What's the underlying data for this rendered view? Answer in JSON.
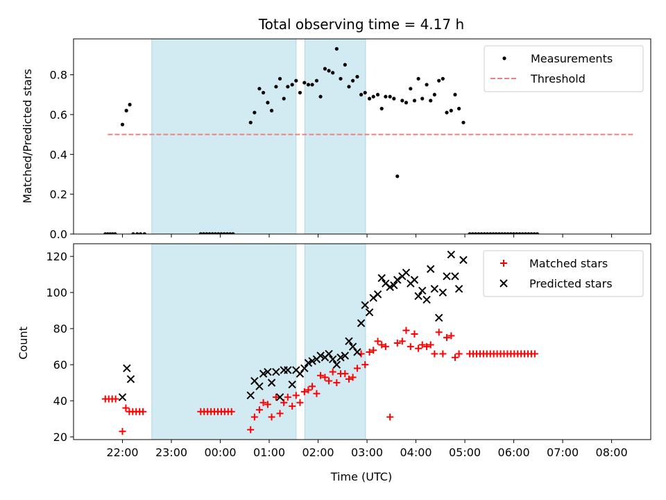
{
  "figure": {
    "title": "Total observing time = 4.17 h",
    "xlabel": "Time (UTC)",
    "x_ticks": [
      "22:00",
      "23:00",
      "00:00",
      "01:00",
      "02:00",
      "03:00",
      "04:00",
      "05:00",
      "06:00",
      "07:00",
      "08:00"
    ],
    "colors": {
      "span": "#add8e6",
      "threshold": "#f08080",
      "measurements": "#000000",
      "matched": "#ff0000",
      "predicted": "#000000"
    }
  },
  "chart_data": [
    {
      "type": "scatter",
      "ylabel": "Matched/Predicted stars",
      "xlim": [
        -1.0,
        10.8
      ],
      "ylim": [
        0,
        0.98
      ],
      "y_ticks": [
        0.0,
        0.2,
        0.4,
        0.6,
        0.8
      ],
      "legend_position": "top-right",
      "shaded_spans": [
        [
          0.6,
          3.55
        ],
        [
          3.73,
          4.97
        ]
      ],
      "threshold": {
        "name": "Threshold",
        "y": 0.5,
        "x_range": [
          -0.3,
          10.48
        ]
      },
      "series": [
        {
          "name": "Measurements",
          "points": [
            [
              -0.35,
              0
            ],
            [
              -0.3,
              0
            ],
            [
              -0.25,
              0
            ],
            [
              -0.2,
              0
            ],
            [
              -0.15,
              0
            ],
            [
              0.0,
              0.55
            ],
            [
              0.08,
              0.62
            ],
            [
              0.15,
              0.65
            ],
            [
              0.22,
              0
            ],
            [
              0.3,
              0
            ],
            [
              0.37,
              0
            ],
            [
              0.45,
              0
            ],
            [
              1.6,
              0
            ],
            [
              1.66,
              0
            ],
            [
              1.72,
              0
            ],
            [
              1.78,
              0
            ],
            [
              1.84,
              0
            ],
            [
              1.9,
              0
            ],
            [
              1.96,
              0
            ],
            [
              2.02,
              0
            ],
            [
              2.08,
              0
            ],
            [
              2.14,
              0
            ],
            [
              2.2,
              0
            ],
            [
              2.26,
              0
            ],
            [
              2.62,
              0.56
            ],
            [
              2.7,
              0.61
            ],
            [
              2.8,
              0.73
            ],
            [
              2.88,
              0.71
            ],
            [
              2.97,
              0.66
            ],
            [
              3.05,
              0.62
            ],
            [
              3.14,
              0.74
            ],
            [
              3.22,
              0.78
            ],
            [
              3.3,
              0.68
            ],
            [
              3.38,
              0.74
            ],
            [
              3.47,
              0.75
            ],
            [
              3.55,
              0.77
            ],
            [
              3.63,
              0.71
            ],
            [
              3.72,
              0.76
            ],
            [
              3.8,
              0.75
            ],
            [
              3.88,
              0.75
            ],
            [
              3.97,
              0.77
            ],
            [
              4.05,
              0.69
            ],
            [
              4.14,
              0.83
            ],
            [
              4.22,
              0.82
            ],
            [
              4.3,
              0.81
            ],
            [
              4.38,
              0.93
            ],
            [
              4.46,
              0.78
            ],
            [
              4.55,
              0.85
            ],
            [
              4.63,
              0.74
            ],
            [
              4.71,
              0.77
            ],
            [
              4.8,
              0.79
            ],
            [
              4.88,
              0.7
            ],
            [
              4.96,
              0.71
            ],
            [
              5.05,
              0.68
            ],
            [
              5.13,
              0.69
            ],
            [
              5.22,
              0.7
            ],
            [
              5.3,
              0.63
            ],
            [
              5.38,
              0.69
            ],
            [
              5.47,
              0.69
            ],
            [
              5.55,
              0.68
            ],
            [
              5.62,
              0.29
            ],
            [
              5.72,
              0.67
            ],
            [
              5.8,
              0.66
            ],
            [
              5.89,
              0.73
            ],
            [
              5.97,
              0.67
            ],
            [
              6.05,
              0.78
            ],
            [
              6.13,
              0.68
            ],
            [
              6.22,
              0.75
            ],
            [
              6.3,
              0.67
            ],
            [
              6.38,
              0.7
            ],
            [
              6.47,
              0.77
            ],
            [
              6.55,
              0.78
            ],
            [
              6.63,
              0.61
            ],
            [
              6.72,
              0.62
            ],
            [
              6.8,
              0.7
            ],
            [
              6.88,
              0.63
            ],
            [
              6.97,
              0.56
            ],
            [
              7.1,
              0
            ],
            [
              7.16,
              0
            ],
            [
              7.22,
              0
            ],
            [
              7.28,
              0
            ],
            [
              7.34,
              0
            ],
            [
              7.4,
              0
            ],
            [
              7.46,
              0
            ],
            [
              7.52,
              0
            ],
            [
              7.58,
              0
            ],
            [
              7.64,
              0
            ],
            [
              7.7,
              0
            ],
            [
              7.76,
              0
            ],
            [
              7.82,
              0
            ],
            [
              7.88,
              0
            ],
            [
              7.94,
              0
            ],
            [
              8.0,
              0
            ],
            [
              8.06,
              0
            ],
            [
              8.12,
              0
            ],
            [
              8.18,
              0
            ],
            [
              8.24,
              0
            ],
            [
              8.3,
              0
            ],
            [
              8.36,
              0
            ],
            [
              8.42,
              0
            ],
            [
              8.48,
              0
            ]
          ]
        }
      ]
    },
    {
      "type": "scatter",
      "ylabel": "Count",
      "xlim": [
        -1.0,
        10.8
      ],
      "ylim": [
        18.5,
        127
      ],
      "y_ticks": [
        20,
        40,
        60,
        80,
        100,
        120
      ],
      "legend_position": "top-right",
      "shaded_spans": [
        [
          0.6,
          3.55
        ],
        [
          3.73,
          4.97
        ]
      ],
      "series": [
        {
          "name": "Matched stars",
          "marker": "plus",
          "points": [
            [
              -0.35,
              41
            ],
            [
              -0.28,
              41
            ],
            [
              -0.21,
              41
            ],
            [
              -0.14,
              41
            ],
            [
              0.0,
              23
            ],
            [
              0.07,
              36
            ],
            [
              0.14,
              34
            ],
            [
              0.21,
              34
            ],
            [
              0.28,
              34
            ],
            [
              0.35,
              34
            ],
            [
              0.42,
              34
            ],
            [
              1.6,
              34
            ],
            [
              1.67,
              34
            ],
            [
              1.74,
              34
            ],
            [
              1.81,
              34
            ],
            [
              1.88,
              34
            ],
            [
              1.95,
              34
            ],
            [
              2.02,
              34
            ],
            [
              2.09,
              34
            ],
            [
              2.16,
              34
            ],
            [
              2.23,
              34
            ],
            [
              2.62,
              24
            ],
            [
              2.7,
              31
            ],
            [
              2.8,
              35
            ],
            [
              2.88,
              39
            ],
            [
              2.97,
              38
            ],
            [
              3.05,
              31
            ],
            [
              3.14,
              42
            ],
            [
              3.22,
              33
            ],
            [
              3.3,
              39
            ],
            [
              3.38,
              42
            ],
            [
              3.47,
              37
            ],
            [
              3.55,
              43
            ],
            [
              3.63,
              39
            ],
            [
              3.72,
              45
            ],
            [
              3.8,
              46
            ],
            [
              3.88,
              48
            ],
            [
              3.97,
              44
            ],
            [
              4.05,
              54
            ],
            [
              4.14,
              53
            ],
            [
              4.22,
              51
            ],
            [
              4.3,
              56
            ],
            [
              4.38,
              50
            ],
            [
              4.46,
              55
            ],
            [
              4.55,
              55
            ],
            [
              4.63,
              52
            ],
            [
              4.71,
              53
            ],
            [
              4.8,
              58
            ],
            [
              4.88,
              66
            ],
            [
              4.96,
              60
            ],
            [
              5.05,
              67
            ],
            [
              5.13,
              68
            ],
            [
              5.22,
              73
            ],
            [
              5.3,
              71
            ],
            [
              5.38,
              70
            ],
            [
              5.47,
              31
            ],
            [
              5.62,
              72
            ],
            [
              5.72,
              73
            ],
            [
              5.8,
              79
            ],
            [
              5.89,
              70
            ],
            [
              5.97,
              77
            ],
            [
              6.05,
              69
            ],
            [
              6.13,
              71
            ],
            [
              6.22,
              70
            ],
            [
              6.3,
              71
            ],
            [
              6.38,
              66
            ],
            [
              6.47,
              78
            ],
            [
              6.55,
              66
            ],
            [
              6.63,
              75
            ],
            [
              6.72,
              76
            ],
            [
              6.8,
              64
            ],
            [
              6.88,
              66
            ],
            [
              7.1,
              66
            ],
            [
              7.17,
              66
            ],
            [
              7.24,
              66
            ],
            [
              7.31,
              66
            ],
            [
              7.38,
              66
            ],
            [
              7.45,
              66
            ],
            [
              7.52,
              66
            ],
            [
              7.59,
              66
            ],
            [
              7.66,
              66
            ],
            [
              7.73,
              66
            ],
            [
              7.8,
              66
            ],
            [
              7.87,
              66
            ],
            [
              7.94,
              66
            ],
            [
              8.01,
              66
            ],
            [
              8.08,
              66
            ],
            [
              8.15,
              66
            ],
            [
              8.22,
              66
            ],
            [
              8.29,
              66
            ],
            [
              8.36,
              66
            ],
            [
              8.43,
              66
            ]
          ]
        },
        {
          "name": "Predicted stars",
          "marker": "x",
          "points": [
            [
              0.0,
              42
            ],
            [
              0.09,
              58
            ],
            [
              0.17,
              52
            ],
            [
              2.62,
              43
            ],
            [
              2.7,
              51
            ],
            [
              2.8,
              48
            ],
            [
              2.88,
              55
            ],
            [
              2.97,
              56
            ],
            [
              3.05,
              50
            ],
            [
              3.14,
              56
            ],
            [
              3.22,
              42
            ],
            [
              3.3,
              57
            ],
            [
              3.38,
              57
            ],
            [
              3.47,
              49
            ],
            [
              3.55,
              57
            ],
            [
              3.63,
              55
            ],
            [
              3.72,
              58
            ],
            [
              3.8,
              61
            ],
            [
              3.88,
              62
            ],
            [
              3.97,
              63
            ],
            [
              4.05,
              65
            ],
            [
              4.14,
              64
            ],
            [
              4.22,
              66
            ],
            [
              4.3,
              63
            ],
            [
              4.38,
              60
            ],
            [
              4.46,
              64
            ],
            [
              4.55,
              65
            ],
            [
              4.63,
              73
            ],
            [
              4.71,
              70
            ],
            [
              4.8,
              67
            ],
            [
              4.88,
              83
            ],
            [
              4.96,
              93
            ],
            [
              5.05,
              89
            ],
            [
              5.13,
              97
            ],
            [
              5.22,
              99
            ],
            [
              5.3,
              108
            ],
            [
              5.38,
              105
            ],
            [
              5.47,
              103
            ],
            [
              5.55,
              104
            ],
            [
              5.62,
              107
            ],
            [
              5.72,
              109
            ],
            [
              5.8,
              111
            ],
            [
              5.89,
              105
            ],
            [
              5.97,
              107
            ],
            [
              6.05,
              98
            ],
            [
              6.13,
              101
            ],
            [
              6.22,
              96
            ],
            [
              6.3,
              113
            ],
            [
              6.38,
              102
            ],
            [
              6.47,
              86
            ],
            [
              6.55,
              100
            ],
            [
              6.63,
              109
            ],
            [
              6.72,
              121
            ],
            [
              6.8,
              109
            ],
            [
              6.88,
              102
            ],
            [
              6.97,
              118
            ]
          ]
        }
      ]
    }
  ]
}
